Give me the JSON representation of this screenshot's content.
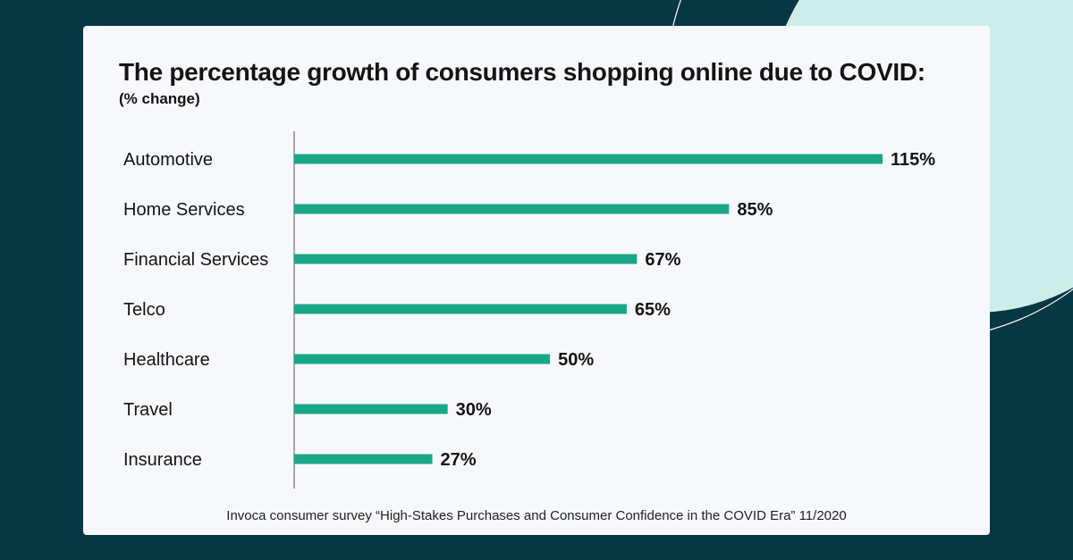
{
  "colors": {
    "background": "#083744",
    "card": "#f7f8fb",
    "bar": "#19a787",
    "mint": "#cdeee8",
    "text": "#141414"
  },
  "chart_data": {
    "type": "bar",
    "orientation": "horizontal",
    "title": "The percentage growth of consumers shopping online due to COVID:",
    "subtitle": "(% change)",
    "categories": [
      "Automotive",
      "Home Services",
      "Financial Services",
      "Telco",
      "Healthcare",
      "Travel",
      "Insurance"
    ],
    "values": [
      115,
      85,
      67,
      65,
      50,
      30,
      27
    ],
    "value_labels": [
      "115%",
      "85%",
      "67%",
      "65%",
      "50%",
      "30%",
      "27%"
    ],
    "xlim": [
      0,
      115
    ],
    "grid": false,
    "legend": "none",
    "source": "Invoca consumer survey “High-Stakes Purchases and Consumer Confidence in the COVID Era” 11/2020"
  }
}
